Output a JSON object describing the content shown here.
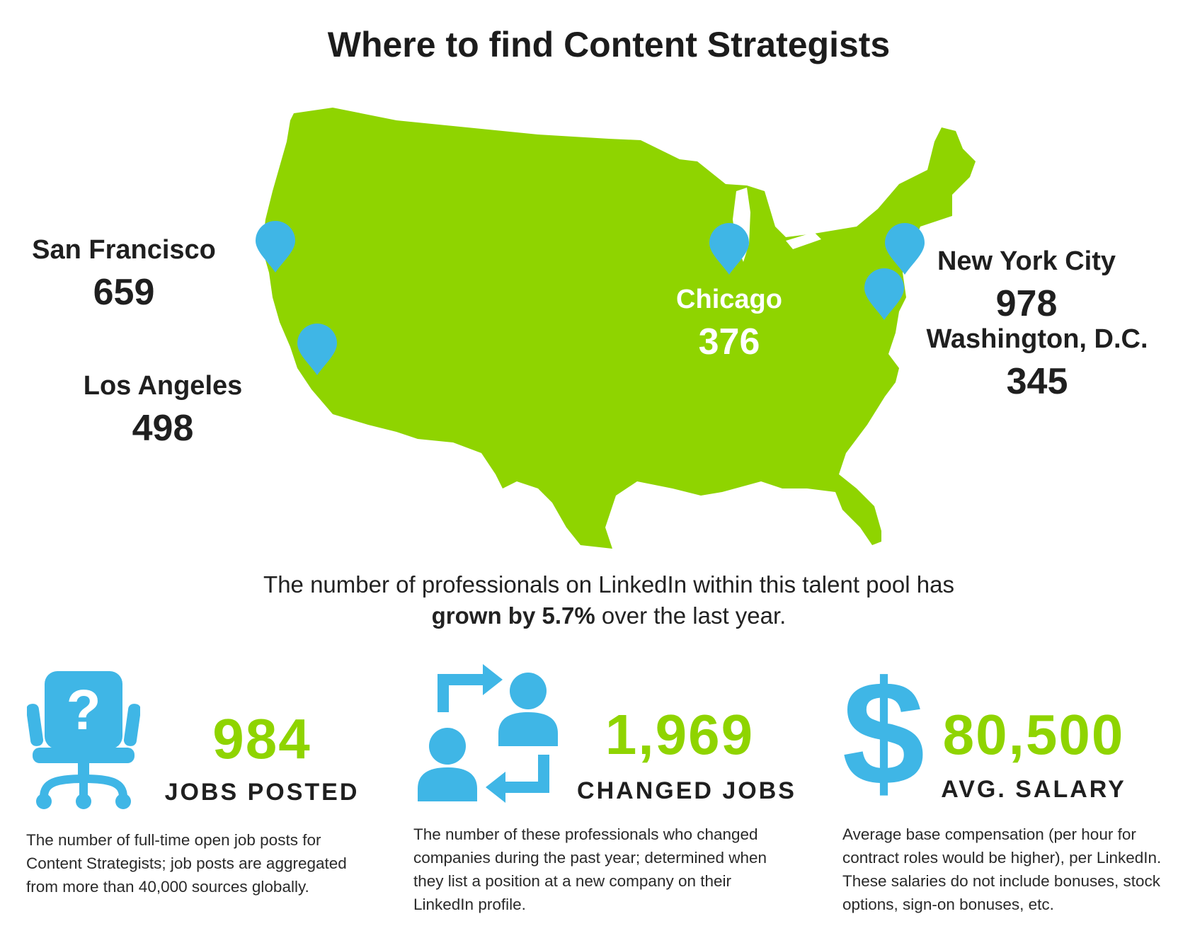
{
  "title": "Where to find Content Strategists",
  "colors": {
    "map": "#8fd400",
    "pin": "#3fb6e6",
    "accent_text": "#8fd400"
  },
  "cities": [
    {
      "name": "San Francisco",
      "count": "659"
    },
    {
      "name": "Los Angeles",
      "count": "498"
    },
    {
      "name": "Chicago",
      "count": "376"
    },
    {
      "name": "New York City",
      "count": "978"
    },
    {
      "name": "Washington, D.C.",
      "count": "345"
    }
  ],
  "growth": {
    "line1": "The number of professionals on LinkedIn within this talent pool has",
    "bold": "grown by 5.7%",
    "rest": " over the last year."
  },
  "stats": [
    {
      "icon": "office-chair-question-icon",
      "value": "984",
      "label": "JOBS POSTED",
      "description": "The number of full-time open job posts for Content Strategists; job posts are aggregated from more than 40,000 sources globally."
    },
    {
      "icon": "people-exchange-icon",
      "value": "1,969",
      "label": "CHANGED JOBS",
      "description": "The number of these professionals who changed companies during the past year; determined when they list a position at a new company on their LinkedIn profile."
    },
    {
      "icon": "dollar-sign-icon",
      "value": "80,500",
      "label": "AVG. SALARY",
      "description": "Average base compensation (per hour for contract roles would be higher), per LinkedIn. These salaries do not include bonuses, stock options, sign-on bonuses, etc."
    }
  ]
}
